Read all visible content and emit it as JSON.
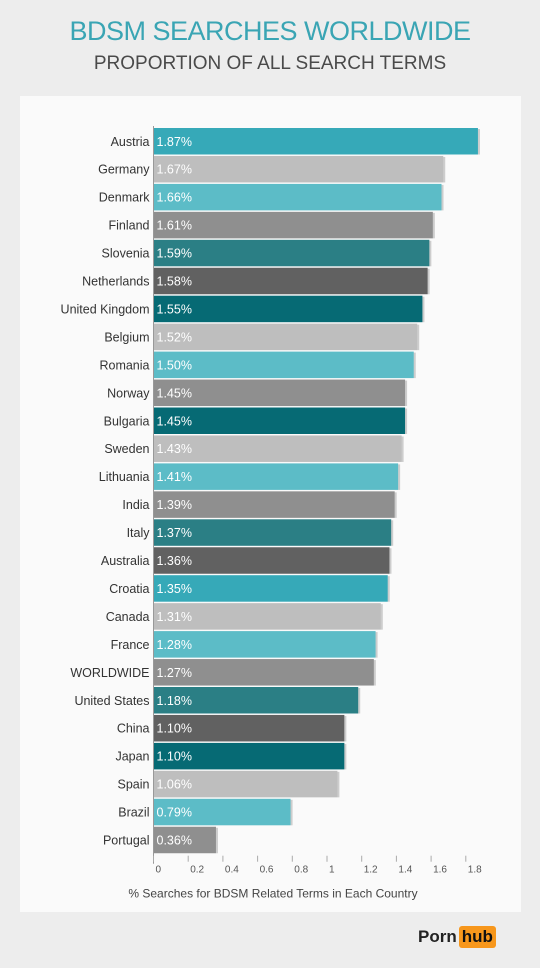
{
  "header": {
    "title": "BDSM SEARCHES WORLDWIDE",
    "subtitle": "PROPORTION OF ALL SEARCH TERMS"
  },
  "logo": {
    "left": "Porn",
    "right": "hub",
    "accent_color": "#f7971c"
  },
  "chart_data": {
    "type": "bar",
    "orientation": "horizontal",
    "title": "BDSM SEARCHES WORLDWIDE",
    "subtitle": "PROPORTION OF ALL SEARCH TERMS",
    "xlabel": "% Searches for BDSM Related Terms in Each Country",
    "ylabel": "",
    "xlim": [
      0,
      1.9
    ],
    "xticks": [
      0,
      0.2,
      0.4,
      0.6,
      0.8,
      1,
      1.2,
      1.4,
      1.6,
      1.8
    ],
    "xtick_labels": [
      "0",
      "0.2",
      "0.4",
      "0.6",
      "0.8",
      "1",
      "1.2",
      "1.4",
      "1.6",
      "1.8"
    ],
    "grid": false,
    "legend": "none",
    "categories": [
      "Austria",
      "Germany",
      "Denmark",
      "Finland",
      "Slovenia",
      "Netherlands",
      "United Kingdom",
      "Belgium",
      "Romania",
      "Norway",
      "Bulgaria",
      "Sweden",
      "Lithuania",
      "India",
      "Italy",
      "Australia",
      "Croatia",
      "Canada",
      "France",
      "WORLDWIDE",
      "United States",
      "China",
      "Japan",
      "Spain",
      "Brazil",
      "Portugal"
    ],
    "values": [
      1.87,
      1.67,
      1.66,
      1.61,
      1.59,
      1.58,
      1.55,
      1.52,
      1.5,
      1.45,
      1.45,
      1.43,
      1.41,
      1.39,
      1.37,
      1.36,
      1.35,
      1.31,
      1.28,
      1.27,
      1.18,
      1.1,
      1.1,
      1.06,
      0.79,
      0.36
    ],
    "data_labels": [
      "1.87%",
      "1.67%",
      "1.66%",
      "1.61%",
      "1.59%",
      "1.58%",
      "1.55%",
      "1.52%",
      "1.50%",
      "1.45%",
      "1.45%",
      "1.43%",
      "1.41%",
      "1.39%",
      "1.37%",
      "1.36%",
      "1.35%",
      "1.31%",
      "1.28%",
      "1.27%",
      "1.18%",
      "1.10%",
      "1.10%",
      "1.06%",
      "0.79%",
      "0.36%"
    ],
    "colors": [
      "#36a9b8",
      "#bebebe",
      "#5cbcc7",
      "#8f8f8f",
      "#2b7f85",
      "#616161",
      "#066a74",
      "#bebebe",
      "#5cbcc7",
      "#8f8f8f",
      "#066a74",
      "#bebebe",
      "#5cbcc7",
      "#8f8f8f",
      "#2b7f85",
      "#616161",
      "#36a9b8",
      "#bebebe",
      "#5cbcc7",
      "#8f8f8f",
      "#2b7f85",
      "#616161",
      "#066a74",
      "#bebebe",
      "#5cbcc7",
      "#8f8f8f"
    ]
  }
}
